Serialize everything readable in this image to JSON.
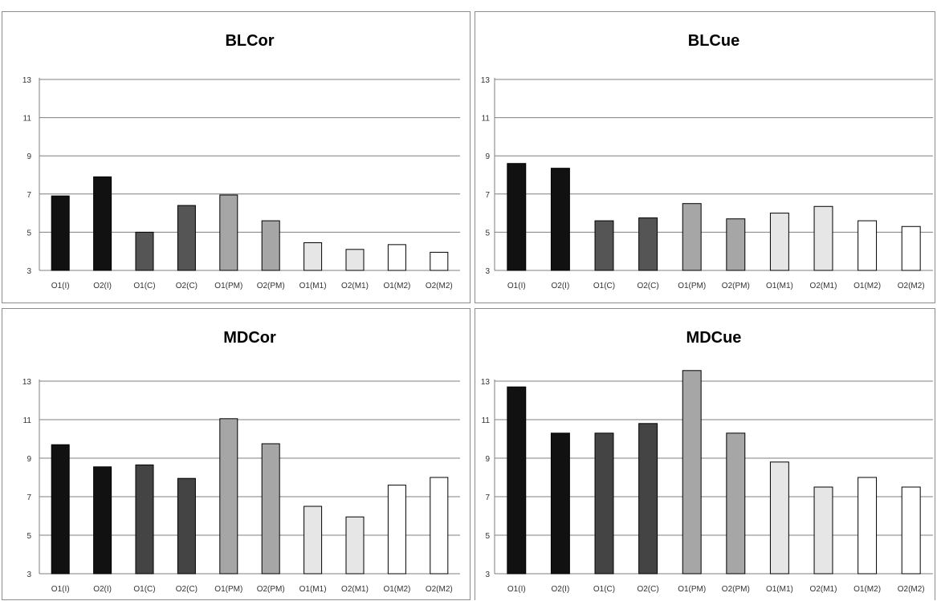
{
  "chart_data": [
    {
      "type": "bar",
      "title": "BLCor",
      "categories": [
        "O1(I)",
        "O2(I)",
        "O1(C)",
        "O2(C)",
        "O1(PM)",
        "O2(PM)",
        "O1(M1)",
        "O2(M1)",
        "O1(M2)",
        "O2(M2)"
      ],
      "values": [
        6.9,
        7.9,
        5.0,
        6.4,
        6.95,
        5.6,
        4.45,
        4.1,
        4.35,
        3.95
      ],
      "colors": [
        "#111111",
        "#111111",
        "#555555",
        "#555555",
        "#a6a6a6",
        "#a6a6a6",
        "#e6e6e6",
        "#e6e6e6",
        "#ffffff",
        "#ffffff"
      ],
      "ylim": [
        3,
        13
      ],
      "yticks": [
        "3",
        "5",
        "7",
        "9",
        "11",
        "13"
      ],
      "grid": true,
      "xlabel": "",
      "ylabel": ""
    },
    {
      "type": "bar",
      "title": "BLCue",
      "categories": [
        "O1(I)",
        "O2(I)",
        "O1(C)",
        "O2(C)",
        "O1(PM)",
        "O2(PM)",
        "O1(M1)",
        "O2(M1)",
        "O1(M2)",
        "O2(M2)"
      ],
      "values": [
        8.6,
        8.35,
        5.6,
        5.75,
        6.5,
        5.7,
        6.0,
        6.35,
        5.6,
        5.3
      ],
      "colors": [
        "#111111",
        "#111111",
        "#555555",
        "#555555",
        "#a6a6a6",
        "#a6a6a6",
        "#e6e6e6",
        "#e6e6e6",
        "#ffffff",
        "#ffffff"
      ],
      "ylim": [
        3,
        13
      ],
      "yticks": [
        "3",
        "5",
        "7",
        "9",
        "11",
        "13"
      ],
      "grid": true,
      "xlabel": "",
      "ylabel": ""
    },
    {
      "type": "bar",
      "title": "MDCor",
      "categories": [
        "O1(I)",
        "O2(I)",
        "O1(C)",
        "O2(C)",
        "O1(PM)",
        "O2(PM)",
        "O1(M1)",
        "O2(M1)",
        "O1(M2)",
        "O2(M2)"
      ],
      "values": [
        9.7,
        8.55,
        8.65,
        7.95,
        11.05,
        9.75,
        6.5,
        5.95,
        7.6,
        8.0
      ],
      "colors": [
        "#111111",
        "#111111",
        "#444444",
        "#444444",
        "#a6a6a6",
        "#a6a6a6",
        "#e6e6e6",
        "#e6e6e6",
        "#ffffff",
        "#ffffff"
      ],
      "ylim": [
        3,
        13
      ],
      "yticks": [
        "3",
        "5",
        "7",
        "9",
        "11",
        "13"
      ],
      "grid": true,
      "xlabel": "",
      "ylabel": ""
    },
    {
      "type": "bar",
      "title": "MDCue",
      "categories": [
        "O1(I)",
        "O2(I)",
        "O1(C)",
        "O2(C)",
        "O1(PM)",
        "O2(PM)",
        "O1(M1)",
        "O2(M1)",
        "O1(M2)",
        "O2(M2)"
      ],
      "values": [
        12.7,
        10.3,
        10.3,
        10.8,
        13.55,
        10.3,
        8.8,
        7.5,
        8.0,
        7.5
      ],
      "colors": [
        "#111111",
        "#111111",
        "#444444",
        "#444444",
        "#a6a6a6",
        "#a6a6a6",
        "#e6e6e6",
        "#e6e6e6",
        "#ffffff",
        "#ffffff"
      ],
      "ylim": [
        3,
        13
      ],
      "yticks": [
        "3",
        "5",
        "7",
        "9",
        "11",
        "13"
      ],
      "grid": true,
      "xlabel": "",
      "ylabel": ""
    }
  ]
}
